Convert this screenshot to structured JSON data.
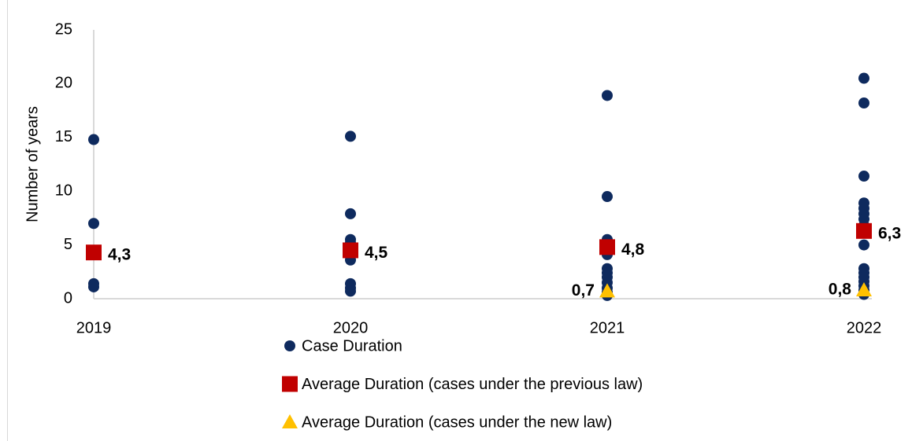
{
  "chart_data": {
    "type": "scatter",
    "y_label": "Number of years",
    "xlim": [
      2019,
      2022
    ],
    "xticks": [
      2019,
      2020,
      2021,
      2022
    ],
    "ylim": [
      0,
      25
    ],
    "yticks": [
      0,
      5,
      10,
      15,
      20,
      25
    ],
    "grid": false,
    "legend": "bottom",
    "series": [
      {
        "name": "Case Duration",
        "color": "#0e2a5e",
        "marker": "circle",
        "x": [
          2019,
          2019,
          2019,
          2019,
          2020,
          2020,
          2020,
          2020,
          2020,
          2020,
          2020,
          2020,
          2020,
          2021,
          2021,
          2021,
          2021,
          2021,
          2021,
          2021,
          2021,
          2021,
          2021,
          2021,
          2021,
          2021,
          2022,
          2022,
          2022,
          2022,
          2022,
          2022,
          2022,
          2022,
          2022,
          2022,
          2022,
          2022,
          2022,
          2022,
          2022,
          2022
        ],
        "values": [
          14.8,
          7.0,
          1.4,
          1.1,
          15.1,
          7.9,
          5.5,
          5.2,
          4.8,
          3.6,
          1.4,
          1.0,
          0.7,
          18.9,
          9.5,
          5.5,
          5.2,
          4.6,
          4.1,
          2.8,
          2.4,
          2.0,
          1.5,
          1.0,
          0.6,
          0.3,
          20.5,
          18.2,
          11.4,
          8.9,
          8.4,
          7.9,
          7.4,
          6.8,
          5.0,
          2.8,
          2.4,
          2.0,
          1.6,
          1.2,
          0.8,
          0.4
        ]
      },
      {
        "name": "Average Duration (cases under the previous law)",
        "color": "#c00000",
        "marker": "square",
        "x": [
          2019,
          2020,
          2021,
          2022
        ],
        "values": [
          4.3,
          4.5,
          4.8,
          6.3
        ],
        "value_labels": [
          "4,3",
          "4,5",
          "4,8",
          "6,3"
        ]
      },
      {
        "name": "Average Duration (cases under the new law)",
        "color": "#ffc000",
        "marker": "triangle",
        "x": [
          2021,
          2022
        ],
        "values": [
          0.7,
          0.8
        ],
        "value_labels": [
          "0,7",
          "0,8"
        ]
      }
    ]
  }
}
